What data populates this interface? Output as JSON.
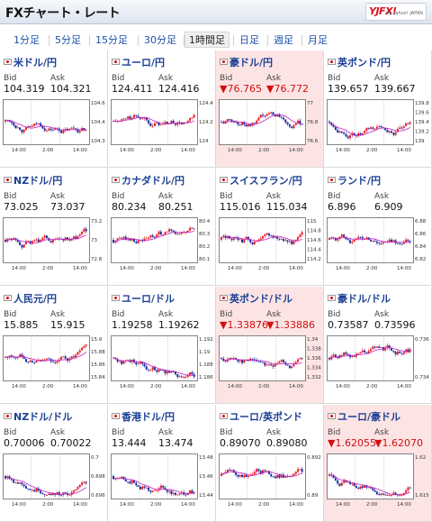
{
  "header": {
    "title": "FXチャート・レート",
    "logo_mark": "YJFX!",
    "logo_sub": "by Yahoo! JAPAN"
  },
  "tabs": [
    "1分足",
    "5分足",
    "15分足",
    "30分足",
    "1時間足",
    "日足",
    "週足",
    "月足"
  ],
  "active_tab": 4,
  "labels": {
    "bid": "Bid",
    "ask": "Ask"
  },
  "x_ticks": [
    "14:00",
    "2:00",
    "14:00"
  ],
  "colors": {
    "up": "#e8202a",
    "down": "#1e2fa0",
    "ma": "#c81ec8",
    "highlight": "#fde4e4"
  },
  "pairs": [
    {
      "name": "米ドル/円",
      "bid": "104.319",
      "ask": "104.321",
      "down": false,
      "hl": false,
      "yticks": [
        "104.6",
        "104.4",
        "104.3"
      ]
    },
    {
      "name": "ユーロ/円",
      "bid": "124.411",
      "ask": "124.416",
      "down": false,
      "hl": false,
      "yticks": [
        "124.4",
        "124.2",
        "124"
      ]
    },
    {
      "name": "豪ドル/円",
      "bid": "▼76.765",
      "ask": "▼76.772",
      "down": true,
      "hl": true,
      "yticks": [
        "77",
        "76.8",
        "76.6"
      ]
    },
    {
      "name": "英ポンド/円",
      "bid": "139.657",
      "ask": "139.667",
      "down": false,
      "hl": false,
      "yticks": [
        "139.8",
        "139.6",
        "139.4",
        "139.2",
        "139"
      ]
    },
    {
      "name": "NZドル/円",
      "bid": "73.025",
      "ask": "73.037",
      "down": false,
      "hl": false,
      "yticks": [
        "73.2",
        "73",
        "72.8"
      ]
    },
    {
      "name": "カナダドル/円",
      "bid": "80.234",
      "ask": "80.251",
      "down": false,
      "hl": false,
      "yticks": [
        "80.4",
        "80.3",
        "80.2",
        "80.1"
      ]
    },
    {
      "name": "スイスフラン/円",
      "bid": "115.016",
      "ask": "115.034",
      "down": false,
      "hl": false,
      "yticks": [
        "115",
        "114.8",
        "114.6",
        "114.4",
        "114.2"
      ]
    },
    {
      "name": "ランド/円",
      "bid": "6.896",
      "ask": "6.909",
      "down": false,
      "hl": false,
      "yticks": [
        "6.88",
        "6.86",
        "6.84",
        "6.82"
      ]
    },
    {
      "name": "人民元/円",
      "bid": "15.885",
      "ask": "15.915",
      "down": false,
      "hl": false,
      "yticks": [
        "15.9",
        "15.88",
        "15.86",
        "15.84"
      ]
    },
    {
      "name": "ユーロ/ドル",
      "bid": "1.19258",
      "ask": "1.19262",
      "down": false,
      "hl": false,
      "yticks": [
        "1.192",
        "1.19",
        "1.188",
        "1.186"
      ]
    },
    {
      "name": "英ポンド/ドル",
      "bid": "▼1.33876",
      "ask": "▼1.33886",
      "down": true,
      "hl": true,
      "yticks": [
        "1.34",
        "1.338",
        "1.336",
        "1.334",
        "1.332"
      ]
    },
    {
      "name": "豪ドル/ドル",
      "bid": "0.73587",
      "ask": "0.73596",
      "down": false,
      "hl": false,
      "yticks": [
        "0.736",
        "0.734"
      ]
    },
    {
      "name": "NZドル/ドル",
      "bid": "0.70006",
      "ask": "0.70022",
      "down": false,
      "hl": false,
      "yticks": [
        "0.7",
        "0.698",
        "0.696"
      ]
    },
    {
      "name": "香港ドル/円",
      "bid": "13.444",
      "ask": "13.474",
      "down": false,
      "hl": false,
      "yticks": [
        "13.48",
        "13.46",
        "13.44"
      ]
    },
    {
      "name": "ユーロ/英ポンド",
      "bid": "0.89070",
      "ask": "0.89080",
      "down": false,
      "hl": false,
      "yticks": [
        "0.892",
        "0.89"
      ]
    },
    {
      "name": "ユーロ/豪ドル",
      "bid": "▼1.62055",
      "ask": "▼1.62070",
      "down": true,
      "hl": true,
      "yticks": [
        "1.62",
        "1.615"
      ]
    }
  ]
}
